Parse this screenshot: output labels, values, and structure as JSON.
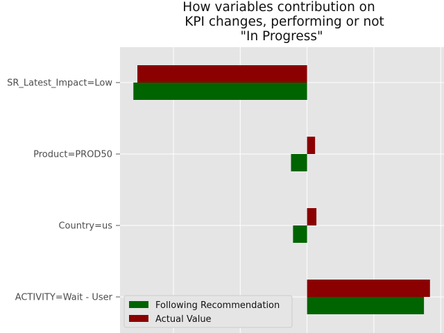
{
  "chart_data": {
    "type": "bar",
    "orientation": "horizontal",
    "title": [
      "How variables contribution on",
      "KPI changes, performing or not",
      "\"In Progress\""
    ],
    "categories": [
      "SR_Latest_Impact=Low",
      "Product=PROD50",
      "Country=us",
      "ACTIVITY=Wait - User"
    ],
    "series": [
      {
        "name": "Actual Value",
        "color": "#8b0000",
        "values": [
          -0.254,
          0.012,
          0.014,
          0.184
        ]
      },
      {
        "name": "Following Recommendation",
        "color": "#006400",
        "values": [
          -0.26,
          -0.024,
          -0.021,
          0.175
        ]
      }
    ],
    "xlim": [
      -0.28,
      0.205
    ],
    "x_ticks_visible": false,
    "grid": true,
    "style": "ggplot",
    "legend_position": "lower-left",
    "legend_order": [
      "Following Recommendation",
      "Actual Value"
    ]
  }
}
